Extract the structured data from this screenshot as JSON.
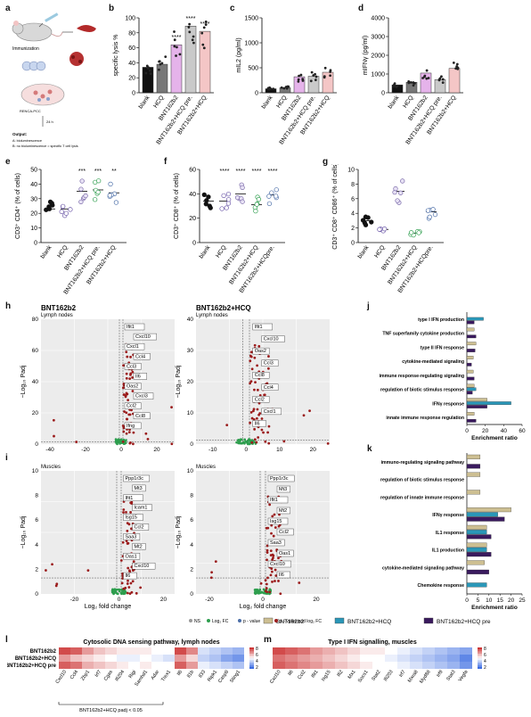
{
  "panel_labels": [
    "a",
    "b",
    "c",
    "d",
    "e",
    "f",
    "g",
    "h",
    "i",
    "j",
    "k",
    "l",
    "m"
  ],
  "colors": {
    "blank": "#111111",
    "hcq": "#777777",
    "bnt": "#e5b3ea",
    "bnt_hcq_pre": "#c9c9c9",
    "bnt_hcq": "#f4c6c6",
    "green": "#2e9e4e",
    "blue_point": "#4b6ea8",
    "red_point": "#9b1c1c",
    "khaki": "#cdbf92",
    "teal": "#2a97b8",
    "purple": "#3a1a5e"
  },
  "panel_a": {
    "immunization": "Immunization",
    "spleen": "Spleen",
    "hours": "24 h",
    "plate": "RENCA-PCC",
    "output_title": "Output:",
    "output_a": "A: bioluminescence",
    "output_b": "B: no bioluminescence = specific T cell lysis"
  },
  "groups5": [
    "blank",
    "HCQ",
    "BNT162b2",
    "BNT162b2+HCQ pre.",
    "BNT162b2+HCQ"
  ],
  "groups5_e": [
    "blank",
    "HCQ",
    "BNT162b2",
    "BNT162b2+HCQ pre.",
    "BNT162b2+HCQ"
  ],
  "groups5_f": [
    "blank",
    "HCQ",
    "BNT162b2",
    "BNT162b2+HCQ",
    "BNT162b2+HCQpre."
  ],
  "groups5_g": [
    "blank",
    "HCQ",
    "BNT162b2",
    "BNT162b2+HCQ",
    "BNT162b2+HCQpre."
  ],
  "chart_data": [
    {
      "id": "b",
      "type": "bar",
      "ylabel": "specific lysis %",
      "ylim": [
        0,
        100
      ],
      "ticks": [
        0,
        20,
        40,
        60,
        80,
        100
      ],
      "values": [
        34,
        38,
        64,
        89,
        82
      ],
      "stars": [
        "",
        "",
        "****",
        "****",
        "****"
      ]
    },
    {
      "id": "c",
      "type": "bar",
      "ylabel": "mIL2 (pg/ml)",
      "ylim": [
        0,
        1500
      ],
      "ticks": [
        0,
        500,
        1000,
        1500
      ],
      "values": [
        80,
        100,
        320,
        330,
        410
      ],
      "stars": [
        "",
        "",
        "",
        "",
        ""
      ]
    },
    {
      "id": "d",
      "type": "bar",
      "ylabel": "mIFNγ (pg/ml)",
      "ylim": [
        0,
        4000
      ],
      "ticks": [
        0,
        1000,
        2000,
        3000,
        4000
      ],
      "values": [
        420,
        560,
        1050,
        700,
        1300
      ],
      "stars": [
        "",
        "",
        "",
        "",
        ""
      ]
    },
    {
      "id": "e",
      "type": "scatter",
      "ylabel": "CD3⁺ CD4⁺ (% of cells)",
      "ylim": [
        0,
        50
      ],
      "ticks": [
        0,
        10,
        20,
        30,
        40,
        50
      ],
      "means": [
        23,
        23,
        35,
        36,
        34
      ],
      "stars": [
        "",
        "",
        "***",
        "***",
        "**"
      ]
    },
    {
      "id": "f",
      "type": "scatter",
      "ylabel": "CD3⁺ CD8⁺ (% of cells)",
      "ylim": [
        0,
        60
      ],
      "ticks": [
        0,
        20,
        40,
        60
      ],
      "means": [
        34,
        34,
        40,
        31,
        39
      ],
      "stars": [
        "",
        "****",
        "****",
        "****",
        "****"
      ]
    },
    {
      "id": "g",
      "type": "scatter",
      "ylabel": "CD3⁺ CD8⁺ CD86⁺ (% of cells)",
      "ylim": [
        0,
        10
      ],
      "ticks": [
        0,
        2,
        4,
        6,
        8,
        10
      ],
      "means": [
        3,
        1.8,
        7,
        1.3,
        4.2
      ],
      "stars": [
        "",
        "",
        "",
        "",
        ""
      ]
    },
    {
      "id": "j",
      "type": "bar",
      "xlabel": "Enrichment ratio",
      "xlim": [
        0,
        60
      ],
      "ticks": [
        0,
        20,
        40,
        60
      ],
      "categories": [
        "type I IFN production",
        "TNF superfamily cytokine production",
        "type II IFN response",
        "cytokine-mediated signaling",
        "immune response-regulating signaling",
        "regulation of biotic stimulus response",
        "IFNγ response",
        "innate immune response regulation"
      ],
      "series": [
        {
          "name": "BNT162b2",
          "values": [
            0,
            8,
            10,
            7,
            7,
            8,
            22,
            8
          ]
        },
        {
          "name": "BNT162b2+HCQ",
          "values": [
            18,
            0,
            0,
            0,
            0,
            10,
            48,
            0
          ]
        },
        {
          "name": "BNT162b2+HCQ pre",
          "values": [
            8,
            10,
            9,
            5,
            8,
            6,
            22,
            10
          ]
        }
      ]
    },
    {
      "id": "k",
      "type": "bar",
      "xlabel": "Enrichment ratio",
      "xlim": [
        0,
        25
      ],
      "ticks": [
        0,
        5,
        10,
        15,
        20,
        25
      ],
      "categories": [
        "immuno-regulating signaling pathway",
        "regulation of biotic stimulus response",
        "regulation of innate immune response",
        "IFNγ response",
        "IL1 response",
        "IL1 production",
        "cytokine-mediated signaling pathway",
        "Chemokine response"
      ],
      "series": [
        {
          "name": "BNT162b2",
          "values": [
            6,
            6,
            6,
            20,
            9,
            9,
            8,
            0
          ]
        },
        {
          "name": "BNT162b2+HCQ",
          "values": [
            0,
            0,
            0,
            14,
            9,
            9,
            0,
            9
          ]
        },
        {
          "name": "BNT162b2+HCQ pre",
          "values": [
            6,
            0,
            0,
            17,
            11,
            11,
            10,
            0
          ]
        }
      ]
    }
  ],
  "panel_h": {
    "title_left": "BNT162b2",
    "title_right": "BNT162b2+HCQ",
    "subtitle": "Lymph nodes",
    "ylabel": "−Log₁₀ Padj",
    "left_genes": [
      "Ifit1",
      "Cxcl10",
      "Cxcl1",
      "Ccl4",
      "Ccl3",
      "Il6",
      "Oas2",
      "Cxcl3",
      "Ccl2",
      "Ccl8",
      "Ifng"
    ],
    "right_genes": [
      "Ifit1",
      "Cxcl10",
      "Oas2",
      "Ccl3",
      "Ccl8",
      "Ccl4",
      "Ccl2",
      "Cxcl1",
      "Il6"
    ]
  },
  "panel_i": {
    "subtitle": "Muscles",
    "ylabel": "−Log₁₀ Padj",
    "xlabel": "Log₂ fold change",
    "left_genes": [
      "Ppp1r3c",
      "Mt3",
      "Ifit1",
      "Icam1",
      "Isg15",
      "Ccl2",
      "Saa3",
      "Mt2",
      "Oas1",
      "Cxcl10",
      "Il6"
    ],
    "right_genes": [
      "Ppp1r3c",
      "Mt3",
      "Ifit1",
      "Mt2",
      "Isg15",
      "Ccl2",
      "Saa3",
      "Oas1",
      "Cxcl10",
      "Il6"
    ]
  },
  "volcano_legend": {
    "ns": "NS",
    "fc": "Log₂ FC",
    "p": "p - value",
    "both": "p - value and log₂ FC"
  },
  "legend_jk": [
    "BNT162b2",
    "BNT162b2+HCQ",
    "BNT162b2+HCQ pre"
  ],
  "panel_l": {
    "title": "Cytosolic DNA sensing pathway, lymph nodes",
    "rows": [
      "BNT162b2",
      "BNT162b2+HCQ",
      "BNT162b2+HCQ pre"
    ],
    "cols": [
      "Cxcl10",
      "Ccl4",
      "Zbp1",
      "Irf7",
      "Cgas",
      "Ifi204",
      "Rigi",
      "Samhd1",
      "Adar",
      "Trex1",
      "Il6",
      "Il1b",
      "Il33",
      "Ripk1",
      "Casp8",
      "Sting1"
    ],
    "bracket_text": "BNT162b2+HCQ padj < 0.05",
    "scale": [
      "8",
      "6",
      "4",
      "2"
    ]
  },
  "panel_m": {
    "title": "Type I IFN signalling, muscles",
    "cols": [
      "Cxcl10",
      "Il6",
      "Ccl2",
      "Ifit1",
      "Isg15",
      "Ifi2",
      "Mx1",
      "Socs1",
      "Stat2",
      "Ifi203",
      "Irf7",
      "Mxra8",
      "Myd88",
      "Irf9",
      "Stat3",
      "Vegfa"
    ],
    "scale": [
      "8",
      "6",
      "4",
      "2"
    ]
  }
}
